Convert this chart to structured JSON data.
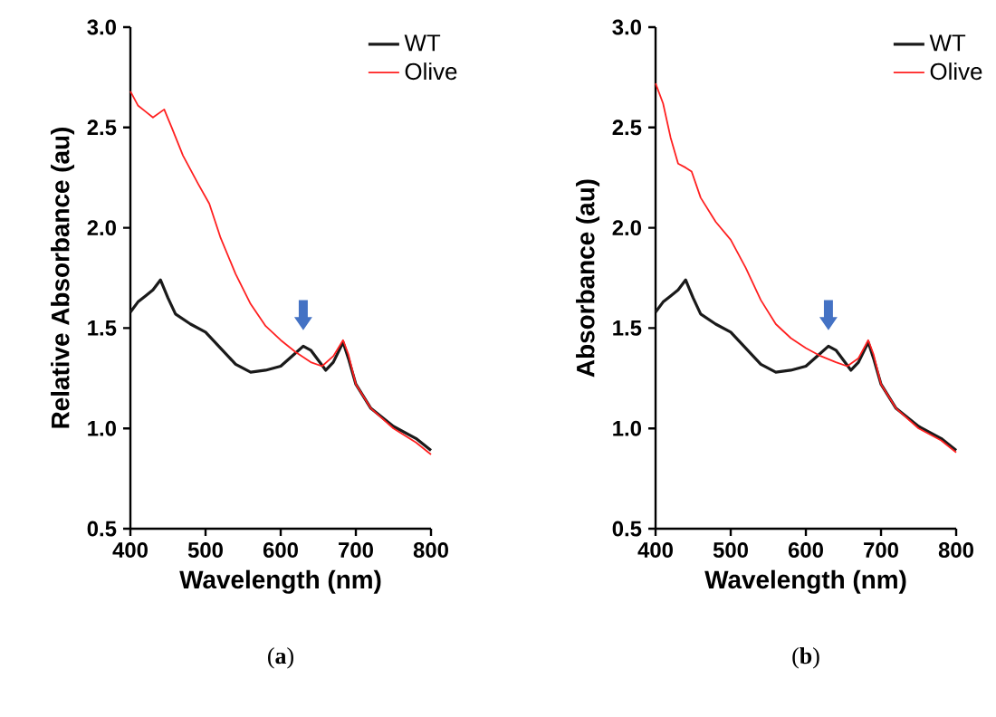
{
  "chart_data": [
    {
      "type": "line",
      "xlabel": "Wavelength (nm)",
      "ylabel": "Relative Absorbance (au)",
      "xlim": [
        400,
        800
      ],
      "ylim": [
        0.5,
        3.0
      ],
      "xticks": [
        400,
        500,
        600,
        700,
        800
      ],
      "yticks": [
        {
          "value": 0.5,
          "label": "0.5"
        },
        {
          "value": 1,
          "label": "1.0"
        },
        {
          "value": 1.5,
          "label": "1.5"
        },
        {
          "value": 2,
          "label": "2.0"
        },
        {
          "value": 2.5,
          "label": "2.5"
        },
        {
          "value": 3,
          "label": "3.0"
        }
      ],
      "legend": "top right",
      "grid": false,
      "annotations": [
        "(**a**)"
      ],
      "series": [
        {
          "name": "WT",
          "color": "#1a1a1a",
          "x": [
            400,
            410,
            420,
            430,
            440,
            450,
            460,
            480,
            500,
            520,
            540,
            560,
            580,
            600,
            615,
            630,
            640,
            650,
            660,
            670,
            683,
            690,
            700,
            720,
            750,
            780,
            800
          ],
          "values": [
            1.58,
            1.63,
            1.66,
            1.69,
            1.74,
            1.65,
            1.57,
            1.52,
            1.48,
            1.4,
            1.32,
            1.28,
            1.29,
            1.31,
            1.36,
            1.41,
            1.39,
            1.34,
            1.29,
            1.33,
            1.43,
            1.35,
            1.22,
            1.1,
            1.01,
            0.95,
            0.89
          ]
        },
        {
          "name": "Olive",
          "color": "#ff2020",
          "x": [
            400,
            410,
            420,
            430,
            445,
            455,
            470,
            490,
            505,
            520,
            540,
            560,
            580,
            600,
            620,
            640,
            655,
            670,
            683,
            690,
            700,
            720,
            750,
            780,
            800
          ],
          "values": [
            2.68,
            2.61,
            2.58,
            2.55,
            2.59,
            2.5,
            2.36,
            2.22,
            2.12,
            1.95,
            1.77,
            1.62,
            1.51,
            1.44,
            1.38,
            1.33,
            1.31,
            1.36,
            1.44,
            1.37,
            1.22,
            1.1,
            1.0,
            0.93,
            0.87
          ]
        }
      ]
    },
    {
      "type": "line",
      "xlabel": "Wavelength (nm)",
      "ylabel": "Absorbance (au)",
      "xlim": [
        400,
        800
      ],
      "ylim": [
        0.5,
        3.0
      ],
      "xticks": [
        400,
        500,
        600,
        700,
        800
      ],
      "yticks": [
        {
          "value": 0.5,
          "label": "0.5"
        },
        {
          "value": 1,
          "label": "1.0"
        },
        {
          "value": 1.5,
          "label": "1.5"
        },
        {
          "value": 2,
          "label": "2.0"
        },
        {
          "value": 2.5,
          "label": "2.5"
        },
        {
          "value": 3,
          "label": "3.0"
        }
      ],
      "legend": "top right",
      "grid": false,
      "annotations": [
        "(**b**)"
      ],
      "series": [
        {
          "name": "WT",
          "color": "#1a1a1a",
          "x": [
            400,
            410,
            420,
            430,
            440,
            450,
            460,
            480,
            500,
            520,
            540,
            560,
            580,
            600,
            615,
            630,
            640,
            650,
            660,
            670,
            683,
            690,
            700,
            720,
            750,
            780,
            800
          ],
          "values": [
            1.58,
            1.63,
            1.66,
            1.69,
            1.74,
            1.65,
            1.57,
            1.52,
            1.48,
            1.4,
            1.32,
            1.28,
            1.29,
            1.31,
            1.36,
            1.41,
            1.39,
            1.34,
            1.29,
            1.33,
            1.43,
            1.35,
            1.22,
            1.1,
            1.01,
            0.95,
            0.89
          ]
        },
        {
          "name": "Olive",
          "color": "#ff2020",
          "x": [
            400,
            410,
            420,
            430,
            440,
            448,
            460,
            480,
            500,
            520,
            540,
            560,
            580,
            600,
            620,
            640,
            655,
            670,
            683,
            690,
            700,
            720,
            750,
            780,
            800
          ],
          "values": [
            2.72,
            2.62,
            2.45,
            2.32,
            2.3,
            2.28,
            2.15,
            2.03,
            1.94,
            1.8,
            1.64,
            1.52,
            1.45,
            1.4,
            1.36,
            1.33,
            1.31,
            1.35,
            1.44,
            1.37,
            1.22,
            1.1,
            1.0,
            0.94,
            0.88
          ]
        }
      ]
    }
  ]
}
